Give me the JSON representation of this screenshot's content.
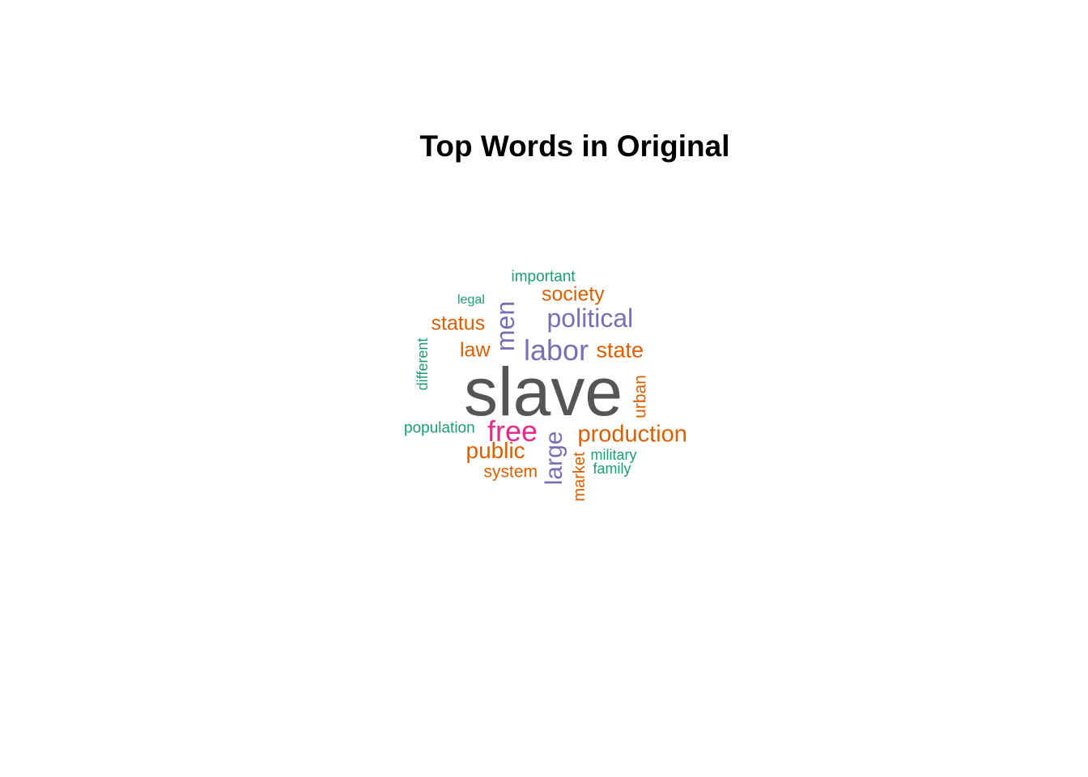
{
  "title": "Top Words in Original",
  "palette": {
    "gray": "#555555",
    "teal": "#1b9e77",
    "orange": "#d95f02",
    "purple": "#7570b3",
    "magenta": "#e7298a"
  },
  "words": [
    {
      "text": "slave",
      "color": "gray",
      "rotated": false
    },
    {
      "text": "labor",
      "color": "purple",
      "rotated": false
    },
    {
      "text": "free",
      "color": "magenta",
      "rotated": false
    },
    {
      "text": "men",
      "color": "purple",
      "rotated": true
    },
    {
      "text": "large",
      "color": "purple",
      "rotated": true
    },
    {
      "text": "political",
      "color": "purple",
      "rotated": false
    },
    {
      "text": "production",
      "color": "orange",
      "rotated": false
    },
    {
      "text": "state",
      "color": "orange",
      "rotated": false
    },
    {
      "text": "public",
      "color": "orange",
      "rotated": false
    },
    {
      "text": "society",
      "color": "orange",
      "rotated": false
    },
    {
      "text": "status",
      "color": "orange",
      "rotated": false
    },
    {
      "text": "law",
      "color": "orange",
      "rotated": false
    },
    {
      "text": "urban",
      "color": "orange",
      "rotated": true
    },
    {
      "text": "system",
      "color": "orange",
      "rotated": false
    },
    {
      "text": "market",
      "color": "orange",
      "rotated": true
    },
    {
      "text": "important",
      "color": "teal",
      "rotated": false
    },
    {
      "text": "population",
      "color": "teal",
      "rotated": false
    },
    {
      "text": "different",
      "color": "teal",
      "rotated": true
    },
    {
      "text": "military",
      "color": "teal",
      "rotated": false
    },
    {
      "text": "family",
      "color": "teal",
      "rotated": false
    },
    {
      "text": "legal",
      "color": "teal",
      "rotated": false
    }
  ]
}
